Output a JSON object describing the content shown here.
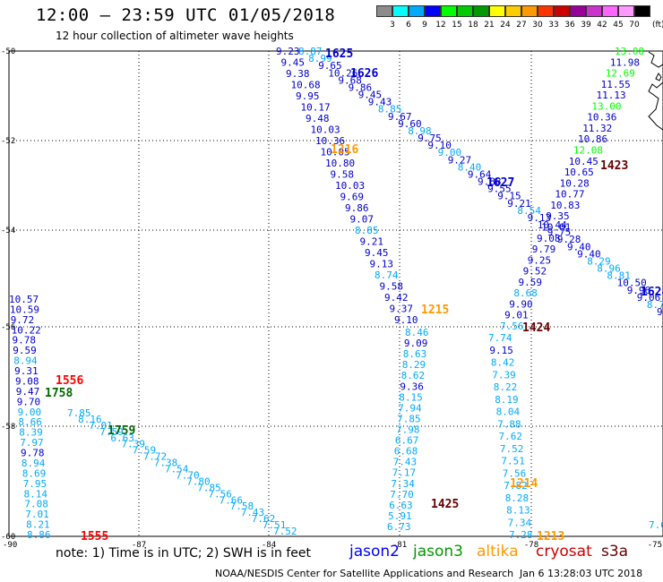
{
  "header": {
    "title": "12:00 – 23:59 UTC 01/05/2018",
    "subtitle": "12 hour collection of altimeter wave heights"
  },
  "colorbar": {
    "unit": "(ft)",
    "swatches": [
      {
        "color": "#8c8c8c",
        "label": "3"
      },
      {
        "color": "#00ffff",
        "label": "6"
      },
      {
        "color": "#00aaff",
        "label": "9"
      },
      {
        "color": "#0000ff",
        "label": "12"
      },
      {
        "color": "#00ff00",
        "label": "15"
      },
      {
        "color": "#00cc00",
        "label": "18"
      },
      {
        "color": "#009900",
        "label": "21"
      },
      {
        "color": "#ffff00",
        "label": "24"
      },
      {
        "color": "#ffcc00",
        "label": "27"
      },
      {
        "color": "#ff9900",
        "label": "30"
      },
      {
        "color": "#ff3300",
        "label": "33"
      },
      {
        "color": "#cc0000",
        "label": "36"
      },
      {
        "color": "#990099",
        "label": "39"
      },
      {
        "color": "#cc33cc",
        "label": "42"
      },
      {
        "color": "#ff66ff",
        "label": "45"
      },
      {
        "color": "#ff99ff",
        "label": "70"
      },
      {
        "color": "#000000",
        "label": ""
      }
    ]
  },
  "axes": {
    "lat_labels": [
      "-50",
      "-52",
      "-54",
      "-56",
      "-58",
      "-60"
    ],
    "lon_labels": [
      "-90",
      "-87",
      "-84",
      "-81",
      "-78",
      "-75"
    ]
  },
  "pass_labels": [
    {
      "text": "1625",
      "color": "#0000cc"
    },
    {
      "text": "1626",
      "color": "#0000cc"
    },
    {
      "text": "1627",
      "color": "#0000cc"
    },
    {
      "text": "1624",
      "color": "#0000cc"
    },
    {
      "text": "1216",
      "color": "#ff9900"
    },
    {
      "text": "1215",
      "color": "#ff9900"
    },
    {
      "text": "1214",
      "color": "#ff9900"
    },
    {
      "text": "1213",
      "color": "#ff9900"
    },
    {
      "text": "1423",
      "color": "#660000"
    },
    {
      "text": "1424",
      "color": "#660000"
    },
    {
      "text": "1425",
      "color": "#660000"
    },
    {
      "text": "1556",
      "color": "#ff0000"
    },
    {
      "text": "1555",
      "color": "#ff0000"
    },
    {
      "text": "1758",
      "color": "#006600"
    },
    {
      "text": "1759",
      "color": "#006600"
    }
  ],
  "tracks": [
    {
      "name": "jason2-1625",
      "points": [
        [
          "9.23",
          "#0000cc"
        ],
        [
          "9.45",
          "#0000cc"
        ],
        [
          "9.38",
          "#0000cc"
        ],
        [
          "10.68",
          "#0000cc"
        ],
        [
          "9.95",
          "#0000cc"
        ],
        [
          "10.17",
          "#0000cc"
        ],
        [
          "9.48",
          "#0000cc"
        ],
        [
          "10.03",
          "#0000cc"
        ],
        [
          "10.36",
          "#0000cc"
        ],
        [
          "10.05",
          "#0000cc"
        ],
        [
          "10.80",
          "#0000cc"
        ],
        [
          "9.58",
          "#0000cc"
        ],
        [
          "10.03",
          "#0000cc"
        ],
        [
          "9.69",
          "#0000cc"
        ],
        [
          "9.86",
          "#0000cc"
        ],
        [
          "9.07",
          "#0000cc"
        ],
        [
          "8.85",
          "#00aaff"
        ],
        [
          "9.21",
          "#0000cc"
        ],
        [
          "9.45",
          "#0000cc"
        ],
        [
          "9.13",
          "#0000cc"
        ],
        [
          "8.74",
          "#00aaff"
        ],
        [
          "9.58",
          "#0000cc"
        ],
        [
          "9.42",
          "#0000cc"
        ],
        [
          "9.37",
          "#0000cc"
        ],
        [
          "9.10",
          "#0000cc"
        ]
      ]
    },
    {
      "name": "jason2-1626",
      "points": [
        [
          "8.87",
          "#00aaff"
        ],
        [
          "8.99",
          "#00aaff"
        ],
        [
          "9.65",
          "#0000cc"
        ],
        [
          "10.26",
          "#0000cc"
        ],
        [
          "9.68",
          "#0000cc"
        ],
        [
          "9.86",
          "#0000cc"
        ],
        [
          "9.45",
          "#0000cc"
        ],
        [
          "9.43",
          "#0000cc"
        ],
        [
          "8.85",
          "#00aaff"
        ],
        [
          "9.67",
          "#0000cc"
        ],
        [
          "9.60",
          "#0000cc"
        ],
        [
          "8.98",
          "#00aaff"
        ],
        [
          "9.75",
          "#0000cc"
        ],
        [
          "9.10",
          "#0000cc"
        ],
        [
          "9.00",
          "#00aaff"
        ],
        [
          "9.27",
          "#0000cc"
        ],
        [
          "8.40",
          "#00aaff"
        ],
        [
          "9.64",
          "#0000cc"
        ],
        [
          "9.88",
          "#0000cc"
        ],
        [
          "9.55",
          "#0000cc"
        ],
        [
          "9.15",
          "#0000cc"
        ],
        [
          "9.21",
          "#0000cc"
        ],
        [
          "8.54",
          "#00aaff"
        ],
        [
          "9.13",
          "#0000cc"
        ],
        [
          "10.44",
          "#0000cc"
        ],
        [
          "9.75",
          "#0000cc"
        ],
        [
          "9.28",
          "#0000cc"
        ],
        [
          "9.40",
          "#0000cc"
        ],
        [
          "9.40",
          "#0000cc"
        ],
        [
          "8.29",
          "#00aaff"
        ],
        [
          "8.96",
          "#00aaff"
        ],
        [
          "8.81",
          "#00aaff"
        ],
        [
          "10.50",
          "#0000cc"
        ],
        [
          "9.96",
          "#0000cc"
        ],
        [
          "9.06",
          "#0000cc"
        ],
        [
          "8.75",
          "#00aaff"
        ],
        [
          "9.26",
          "#0000cc"
        ]
      ]
    },
    {
      "name": "jason2-1627",
      "points": [
        [
          "13.08",
          "#00ff00"
        ],
        [
          "11.98",
          "#0000cc"
        ],
        [
          "12.69",
          "#00ff00"
        ],
        [
          "11.55",
          "#0000cc"
        ],
        [
          "11.13",
          "#0000cc"
        ],
        [
          "13.00",
          "#00ff00"
        ],
        [
          "10.36",
          "#0000cc"
        ],
        [
          "11.32",
          "#0000cc"
        ],
        [
          "10.86",
          "#0000cc"
        ],
        [
          "12.08",
          "#00ff00"
        ],
        [
          "10.45",
          "#0000cc"
        ],
        [
          "10.65",
          "#0000cc"
        ],
        [
          "10.28",
          "#0000cc"
        ],
        [
          "10.77",
          "#0000cc"
        ],
        [
          "10.83",
          "#0000cc"
        ],
        [
          "9.35",
          "#0000cc"
        ],
        [
          "10.01",
          "#0000cc"
        ],
        [
          "9.08",
          "#0000cc"
        ],
        [
          "9.79",
          "#0000cc"
        ],
        [
          "9.25",
          "#0000cc"
        ],
        [
          "9.52",
          "#0000cc"
        ],
        [
          "9.59",
          "#0000cc"
        ],
        [
          "8.68",
          "#00aaff"
        ],
        [
          "9.90",
          "#0000cc"
        ],
        [
          "9.01",
          "#0000cc"
        ],
        [
          "7.56",
          "#00aaff"
        ]
      ]
    },
    {
      "name": "altika-1215",
      "points": [
        [
          "8.46",
          "#00aaff"
        ],
        [
          "9.09",
          "#0000cc"
        ],
        [
          "8.63",
          "#00aaff"
        ],
        [
          "8.29",
          "#00aaff"
        ],
        [
          "8.62",
          "#00aaff"
        ],
        [
          "9.36",
          "#0000cc"
        ],
        [
          "8.15",
          "#00aaff"
        ],
        [
          "7.94",
          "#00aaff"
        ],
        [
          "7.85",
          "#00aaff"
        ],
        [
          "7.98",
          "#00aaff"
        ],
        [
          "6.67",
          "#00aaff"
        ],
        [
          "6.68",
          "#00aaff"
        ],
        [
          "7.43",
          "#00aaff"
        ],
        [
          "7.17",
          "#00aaff"
        ],
        [
          "7.34",
          "#00aaff"
        ],
        [
          "7.70",
          "#00aaff"
        ],
        [
          "6.63",
          "#00aaff"
        ],
        [
          "5.91",
          "#00aaff"
        ],
        [
          "6.73",
          "#00aaff"
        ]
      ]
    },
    {
      "name": "cryosat-1424",
      "points": [
        [
          "7.74",
          "#00aaff"
        ],
        [
          "9.15",
          "#0000cc"
        ],
        [
          "8.42",
          "#00aaff"
        ],
        [
          "7.39",
          "#00aaff"
        ],
        [
          "8.22",
          "#00aaff"
        ],
        [
          "8.19",
          "#00aaff"
        ],
        [
          "8.04",
          "#00aaff"
        ],
        [
          "7.88",
          "#00aaff"
        ],
        [
          "7.62",
          "#00aaff"
        ],
        [
          "7.52",
          "#00aaff"
        ],
        [
          "7.51",
          "#00aaff"
        ],
        [
          "7.56",
          "#00aaff"
        ],
        [
          "7.82",
          "#00aaff"
        ],
        [
          "8.28",
          "#00aaff"
        ],
        [
          "8.13",
          "#00aaff"
        ],
        [
          "7.34",
          "#00aaff"
        ],
        [
          "7.28",
          "#00aaff"
        ]
      ]
    },
    {
      "name": "west-1556",
      "points": [
        [
          "10.57",
          "#0000cc"
        ],
        [
          "10.59",
          "#0000cc"
        ],
        [
          "9.72",
          "#0000cc"
        ],
        [
          "10.22",
          "#0000cc"
        ],
        [
          "9.78",
          "#0000cc"
        ],
        [
          "9.59",
          "#0000cc"
        ],
        [
          "8.94",
          "#00aaff"
        ],
        [
          "9.31",
          "#0000cc"
        ],
        [
          "9.08",
          "#0000cc"
        ],
        [
          "9.47",
          "#0000cc"
        ],
        [
          "9.70",
          "#0000cc"
        ],
        [
          "9.00",
          "#00aaff"
        ],
        [
          "8.66",
          "#00aaff"
        ],
        [
          "8.39",
          "#00aaff"
        ],
        [
          "7.97",
          "#00aaff"
        ],
        [
          "9.78",
          "#0000cc"
        ],
        [
          "8.94",
          "#00aaff"
        ],
        [
          "8.69",
          "#00aaff"
        ],
        [
          "7.95",
          "#00aaff"
        ],
        [
          "8.14",
          "#00aaff"
        ],
        [
          "7.08",
          "#00aaff"
        ],
        [
          "7.01",
          "#00aaff"
        ],
        [
          "8.21",
          "#00aaff"
        ],
        [
          "8.86",
          "#00aaff"
        ]
      ]
    },
    {
      "name": "jason3-1759",
      "points": [
        [
          "7.85",
          "#00aaff"
        ],
        [
          "8.16",
          "#00aaff"
        ],
        [
          "7.01",
          "#00aaff"
        ],
        [
          "7.59",
          "#00aaff"
        ],
        [
          "6.63",
          "#00aaff"
        ],
        [
          "7.39",
          "#00aaff"
        ],
        [
          "7.59",
          "#00aaff"
        ],
        [
          "7.72",
          "#00aaff"
        ],
        [
          "7.38",
          "#00aaff"
        ],
        [
          "7.54",
          "#00aaff"
        ],
        [
          "7.70",
          "#00aaff"
        ],
        [
          "7.80",
          "#00aaff"
        ],
        [
          "7.85",
          "#00aaff"
        ],
        [
          "7.56",
          "#00aaff"
        ],
        [
          "7.66",
          "#00aaff"
        ],
        [
          "7.58",
          "#00aaff"
        ],
        [
          "7.43",
          "#00aaff"
        ],
        [
          "7.62",
          "#00aaff"
        ],
        [
          "7.51",
          "#00aaff"
        ],
        [
          "7.52",
          "#00aaff"
        ]
      ]
    },
    {
      "name": "east-edge",
      "points": [
        [
          "7.6",
          "#00aaff"
        ]
      ]
    }
  ],
  "footer": {
    "note": "note: 1) Time is in UTC; 2) SWH is in feet",
    "satellites": [
      {
        "name": "jason2",
        "color": "#0000ff"
      },
      {
        "name": "jason3",
        "color": "#009900"
      },
      {
        "name": "altika",
        "color": "#ff9900"
      },
      {
        "name": "cryosat",
        "color": "#cc0000"
      },
      {
        "name": "s3a",
        "color": "#660000"
      }
    ],
    "credit": "NOAA/NESDIS Center for Satellite Applications and Research",
    "timestamp": "Jan  6 13:28:03 UTC 2018"
  }
}
